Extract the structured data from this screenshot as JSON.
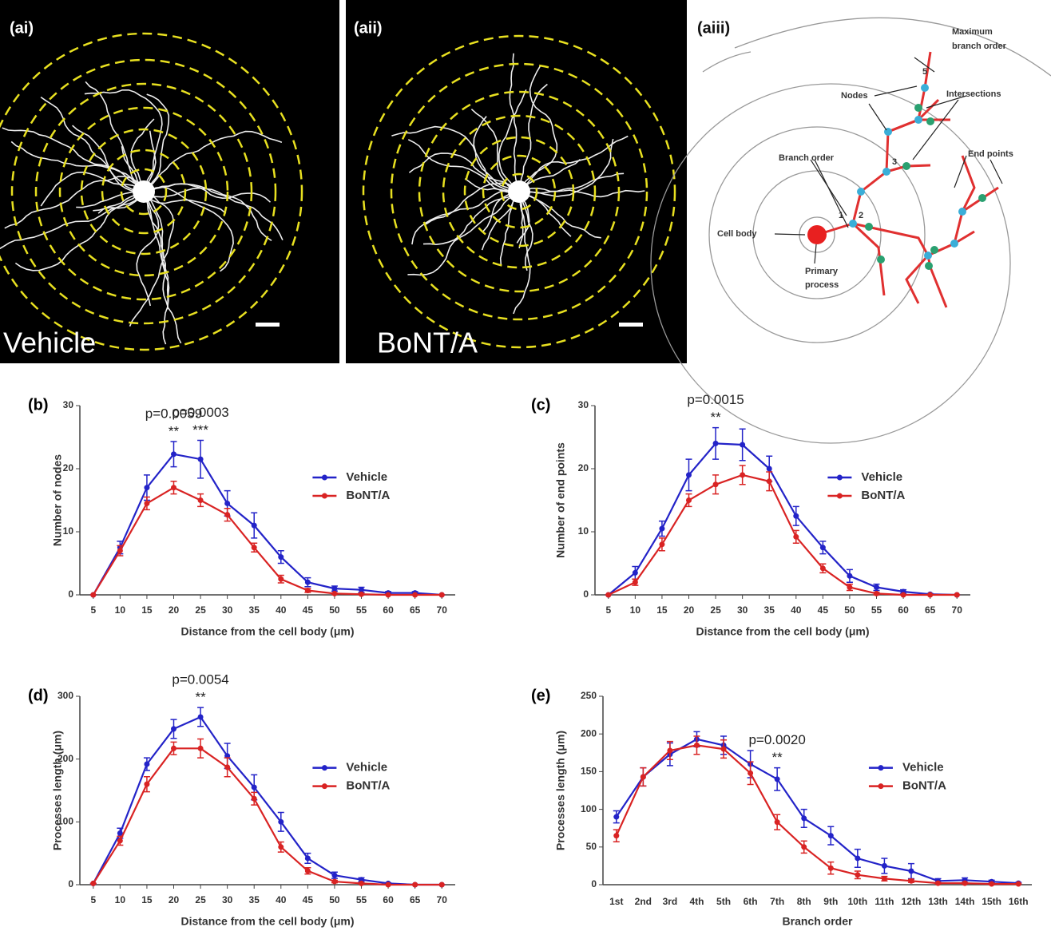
{
  "images": [
    {
      "label": "(ai)",
      "caption": "Vehicle"
    },
    {
      "label": "(aii)",
      "caption": "BoNT/A"
    }
  ],
  "diagram": {
    "label": "(aiii)",
    "max_order": [
      "Maximum",
      "branch order"
    ],
    "nodes": "Nodes",
    "intersections": "Intersections",
    "branch_order": "Branch order",
    "end_points": "End points",
    "cell_body": "Cell body",
    "primary_process": [
      "Primary",
      "process"
    ],
    "orders": [
      "1",
      "2",
      "3",
      "5"
    ]
  },
  "chart_data": [
    {
      "type": "line",
      "panel": "(b)",
      "ylabel": "Number of nodes",
      "xlabel": "Distance from the cell body (μm)",
      "x": [
        5,
        10,
        15,
        20,
        25,
        30,
        35,
        40,
        45,
        50,
        55,
        60,
        65,
        70
      ],
      "xlim": [
        2.5,
        72.5
      ],
      "xticks": [
        5,
        10,
        15,
        20,
        25,
        30,
        35,
        40,
        45,
        50,
        55,
        60,
        65,
        70
      ],
      "ylim": [
        0,
        30
      ],
      "yticks": [
        0,
        10,
        20,
        30
      ],
      "series": [
        {
          "name": "Vehicle",
          "color": "#2323c8",
          "values": [
            0,
            7.5,
            17,
            22.3,
            21.5,
            14.5,
            11,
            6,
            2,
            1,
            0.8,
            0.3,
            0.3,
            0
          ],
          "errors": [
            0,
            1,
            2,
            2,
            3,
            2,
            2,
            1,
            0.7,
            0.4,
            0.4,
            0.2,
            0.2,
            0
          ]
        },
        {
          "name": "BoNT/A",
          "color": "#d92323",
          "values": [
            0,
            7,
            14.5,
            17,
            15,
            12.7,
            7.5,
            2.5,
            0.7,
            0.2,
            0.1,
            0,
            0,
            0
          ],
          "errors": [
            0,
            0.8,
            1,
            1,
            1,
            1,
            0.7,
            0.6,
            0.3,
            0.1,
            0.1,
            0,
            0,
            0
          ]
        }
      ],
      "annotations": [
        {
          "x": 20,
          "stars": "**",
          "label": "p=0.0059"
        },
        {
          "x": 25,
          "stars": "***",
          "label": "p=0.0003"
        }
      ]
    },
    {
      "type": "line",
      "panel": "(c)",
      "ylabel": "Number of end points",
      "xlabel": "Distance from the cell body (μm)",
      "x": [
        5,
        10,
        15,
        20,
        25,
        30,
        35,
        40,
        45,
        50,
        55,
        60,
        65,
        70
      ],
      "xlim": [
        2.5,
        72.5
      ],
      "xticks": [
        5,
        10,
        15,
        20,
        25,
        30,
        35,
        40,
        45,
        50,
        55,
        60,
        65,
        70
      ],
      "ylim": [
        0,
        30
      ],
      "yticks": [
        0,
        10,
        20,
        30
      ],
      "series": [
        {
          "name": "Vehicle",
          "color": "#2323c8",
          "values": [
            0,
            3.5,
            10.5,
            19,
            24,
            23.8,
            20,
            12.5,
            7.5,
            3,
            1.2,
            0.5,
            0.1,
            0
          ],
          "errors": [
            0,
            1,
            1.2,
            2.5,
            2.5,
            2.5,
            2,
            1.5,
            1,
            1,
            0.5,
            0.3,
            0.1,
            0
          ]
        },
        {
          "name": "BoNT/A",
          "color": "#d92323",
          "values": [
            0,
            2,
            8,
            15,
            17.5,
            19,
            18,
            9.2,
            4.2,
            1.2,
            0.2,
            0,
            0,
            0
          ],
          "errors": [
            0,
            0.5,
            1,
            1,
            1.5,
            1.5,
            1.5,
            1,
            0.7,
            0.5,
            0.2,
            0,
            0,
            0
          ]
        }
      ],
      "annotations": [
        {
          "x": 25,
          "stars": "**",
          "label": "p=0.0015"
        }
      ]
    },
    {
      "type": "line",
      "panel": "(d)",
      "ylabel": "Processes length (μm)",
      "xlabel": "Distance from the cell body (μm)",
      "x": [
        5,
        10,
        15,
        20,
        25,
        30,
        35,
        40,
        45,
        50,
        55,
        60,
        65,
        70
      ],
      "xlim": [
        2.5,
        72.5
      ],
      "xticks": [
        5,
        10,
        15,
        20,
        25,
        30,
        35,
        40,
        45,
        50,
        55,
        60,
        65,
        70
      ],
      "ylim": [
        0,
        300
      ],
      "yticks": [
        0,
        100,
        200,
        300
      ],
      "series": [
        {
          "name": "Vehicle",
          "color": "#2323c8",
          "values": [
            2,
            82,
            192,
            248,
            267,
            205,
            155,
            100,
            42,
            15,
            8,
            2,
            0,
            0
          ],
          "errors": [
            0,
            8,
            10,
            15,
            15,
            20,
            20,
            15,
            8,
            5,
            3,
            1,
            0,
            0
          ]
        },
        {
          "name": "BoNT/A",
          "color": "#d92323",
          "values": [
            2,
            70,
            160,
            217,
            217,
            187,
            137,
            60,
            22,
            5,
            2,
            0,
            0,
            0
          ],
          "errors": [
            0,
            7,
            12,
            10,
            15,
            15,
            10,
            8,
            5,
            2,
            1,
            0,
            0,
            0
          ]
        }
      ],
      "annotations": [
        {
          "x": 25,
          "stars": "**",
          "label": "p=0.0054"
        }
      ]
    },
    {
      "type": "line",
      "panel": "(e)",
      "ylabel": "Processes length (μm)",
      "xlabel": "Branch order",
      "categories": [
        "1st",
        "2nd",
        "3rd",
        "4th",
        "5th",
        "6th",
        "7th",
        "8th",
        "9th",
        "10th",
        "11th",
        "12th",
        "13th",
        "14th",
        "15th",
        "16th"
      ],
      "ylim": [
        0,
        250
      ],
      "yticks": [
        0,
        50,
        100,
        150,
        200,
        250
      ],
      "series": [
        {
          "name": "Vehicle",
          "color": "#2323c8",
          "values": [
            90,
            143,
            173,
            193,
            185,
            160,
            140,
            88,
            65,
            35,
            25,
            18,
            5,
            6,
            4,
            2
          ],
          "errors": [
            8,
            12,
            15,
            10,
            12,
            18,
            15,
            12,
            12,
            12,
            10,
            10,
            3,
            3,
            2,
            1
          ]
        },
        {
          "name": "BoNT/A",
          "color": "#d92323",
          "values": [
            65,
            143,
            178,
            185,
            180,
            148,
            83,
            50,
            22,
            13,
            8,
            5,
            2,
            2,
            1,
            1
          ],
          "errors": [
            8,
            12,
            12,
            12,
            12,
            15,
            10,
            8,
            8,
            5,
            3,
            2,
            1,
            1,
            1,
            0.5
          ]
        }
      ],
      "annotations": [
        {
          "x": "7th",
          "stars": "**",
          "label": "p=0.0020"
        }
      ]
    }
  ]
}
